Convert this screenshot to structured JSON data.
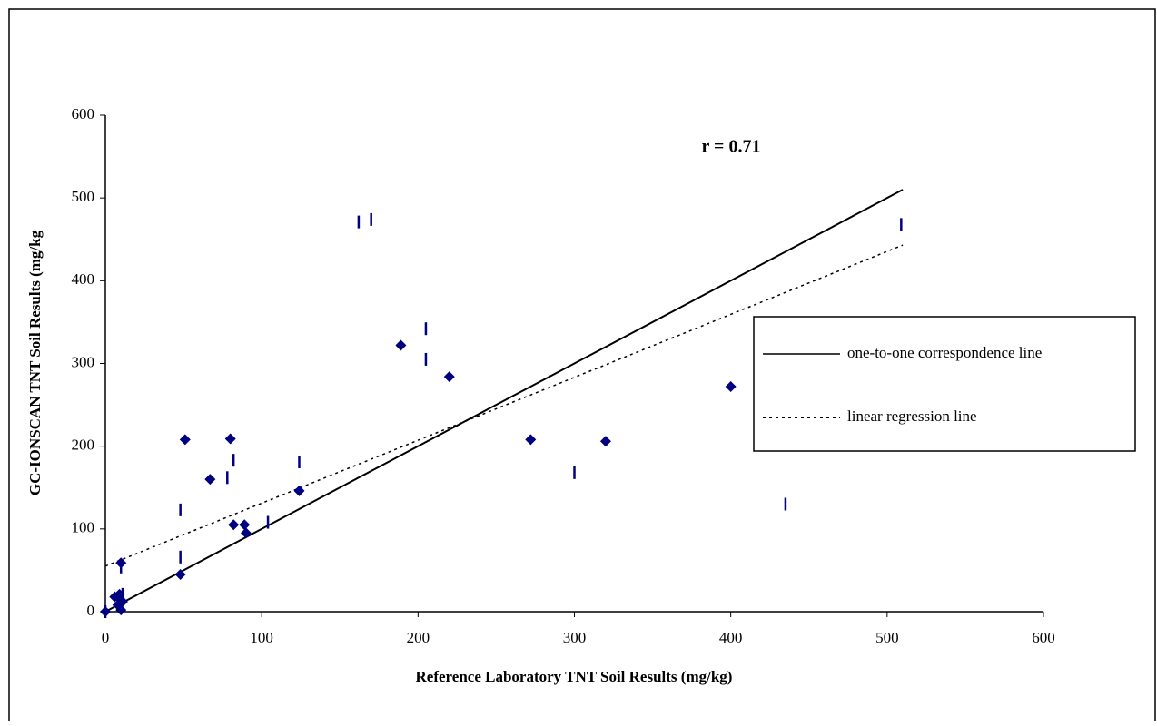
{
  "chart_data": {
    "type": "scatter",
    "x_label": "Reference Laboratory TNT Soil Results (mg/kg)",
    "y_label": "GC-IONSCAN TNT Soil Results (mg/kg",
    "annotation": "r = 0.71",
    "xlim": [
      0,
      600
    ],
    "ylim": [
      0,
      600
    ],
    "xticks": [
      0,
      100,
      200,
      300,
      400,
      500,
      600
    ],
    "yticks": [
      0,
      100,
      200,
      300,
      400,
      500,
      600
    ],
    "legend": "right",
    "series": [
      {
        "color": "#000080",
        "marker": "diamond",
        "x": [
          0,
          6,
          9,
          8,
          10,
          11,
          9,
          10,
          48,
          51,
          67,
          80,
          82,
          89,
          90,
          124,
          189,
          220,
          272,
          320,
          400
        ],
        "values": [
          0,
          18,
          16,
          8,
          2,
          12,
          21,
          59,
          45,
          208,
          160,
          209,
          105,
          105,
          95,
          146,
          322,
          284,
          208,
          206,
          272
        ]
      },
      {
        "color": "#000080",
        "marker": "dash",
        "x": [
          0,
          10,
          11,
          10,
          48,
          48,
          78,
          82,
          104,
          124,
          162,
          170,
          205,
          205,
          300,
          435,
          509
        ],
        "values": [
          0,
          15,
          21,
          54,
          123,
          66,
          162,
          183,
          108,
          181,
          471,
          474,
          342,
          305,
          168,
          130,
          468
        ]
      }
    ],
    "lines": [
      {
        "name": "one-to-one correspondence line",
        "color": "#000000",
        "dash": "solid",
        "x": [
          0,
          510
        ],
        "values": [
          0,
          510
        ]
      },
      {
        "name": "linear regression line",
        "color": "#000000",
        "dash": "dotted",
        "x": [
          0,
          510
        ],
        "values": [
          55,
          443
        ]
      }
    ]
  }
}
